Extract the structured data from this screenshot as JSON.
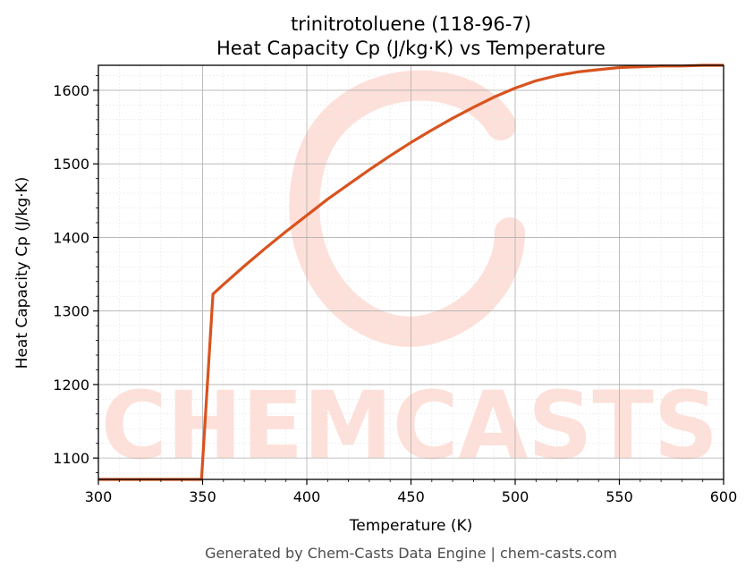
{
  "chart_data": {
    "type": "line",
    "title_line1": "trinitrotoluene (118-96-7)",
    "title_line2": "Heat Capacity Cp (J/kg·K) vs Temperature",
    "xlabel": "Temperature (K)",
    "ylabel": "Heat Capacity Cp (J/kg·K)",
    "xlim": [
      300,
      600
    ],
    "ylim": [
      1071,
      1634
    ],
    "xticks": [
      300,
      350,
      400,
      450,
      500,
      550,
      600
    ],
    "yticks": [
      1100,
      1200,
      1300,
      1400,
      1500,
      1600
    ],
    "grid": true,
    "line_color": "#d9531e",
    "series": [
      {
        "x": [
          300,
          349.5,
          355,
          360,
          370,
          380,
          390,
          400,
          410,
          420,
          430,
          440,
          450,
          460,
          470,
          480,
          490,
          500,
          510,
          520,
          530,
          540,
          550,
          560,
          570,
          580,
          590,
          600
        ],
        "values": [
          1071,
          1071,
          1323,
          1336,
          1361,
          1385,
          1408,
          1430,
          1452,
          1472,
          1492,
          1511,
          1529,
          1546,
          1562,
          1577,
          1591,
          1603,
          1613,
          1620,
          1625,
          1628,
          1631,
          1632,
          1633,
          1633,
          1634,
          1634
        ]
      }
    ]
  },
  "watermark": {
    "text": "CHEMCASTS",
    "color": "#fde0d9"
  },
  "footer": "Generated by Chem-Casts Data Engine | chem-casts.com"
}
